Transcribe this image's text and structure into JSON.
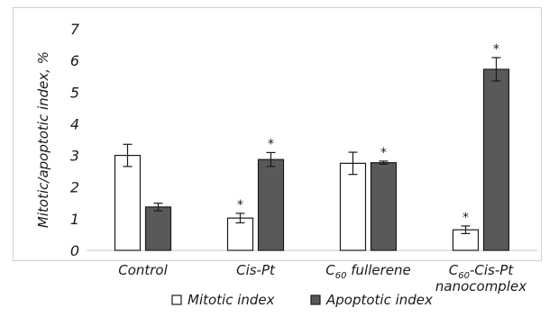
{
  "chart_data": {
    "type": "bar",
    "ylabel": "Mitotic/apoptotic index, %",
    "ylim": [
      0,
      7
    ],
    "yticks": [
      "0",
      "1",
      "2",
      "3",
      "4",
      "5",
      "6",
      "7"
    ],
    "categories": [
      {
        "parts": [
          {
            "t": "Control"
          }
        ]
      },
      {
        "parts": [
          {
            "t": "Cis-Pt"
          }
        ]
      },
      {
        "parts": [
          {
            "t": "C"
          },
          {
            "t": "60",
            "sub": true
          },
          {
            "t": " fullerene"
          }
        ]
      },
      {
        "parts": [
          {
            "t": "C"
          },
          {
            "t": "60",
            "sub": true
          },
          {
            "t": "-Cis-Pt"
          }
        ],
        "line2": "nanocomplex"
      }
    ],
    "series": [
      {
        "name": "Mitotic index",
        "color": "#ffffff",
        "values": [
          3.0,
          1.02,
          2.75,
          0.65
        ],
        "errors": [
          0.35,
          0.15,
          0.35,
          0.12
        ],
        "significance": [
          "",
          "*",
          "",
          "*"
        ]
      },
      {
        "name": "Apoptotic index",
        "color": "#595959",
        "values": [
          1.37,
          2.87,
          2.77,
          5.72
        ],
        "errors": [
          0.12,
          0.22,
          0.05,
          0.37
        ],
        "significance": [
          "",
          "*",
          "*",
          "*"
        ]
      }
    ],
    "legend_position": "bottom",
    "grid": false
  }
}
